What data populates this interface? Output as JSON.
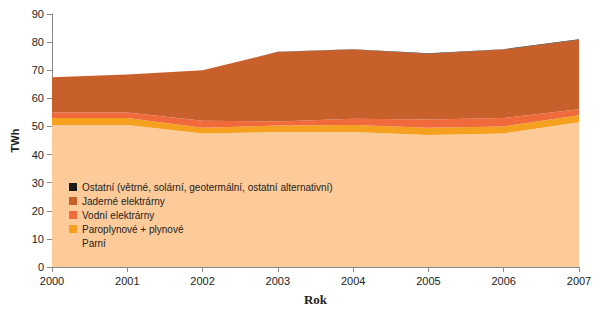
{
  "chart_data": {
    "type": "area",
    "stacked": true,
    "grid": false,
    "legend": "lower left",
    "x_label": "Rok",
    "y_label": "TWh",
    "categories": [
      "2000",
      "2001",
      "2002",
      "2003",
      "2004",
      "2005",
      "2006",
      "2007"
    ],
    "ylim": [
      0,
      90
    ],
    "yticks": [
      0,
      10,
      20,
      30,
      40,
      50,
      60,
      70,
      80,
      90
    ],
    "series": [
      {
        "name": "Parní",
        "color": "#fdcb9a",
        "values": [
          50.5,
          50.5,
          47.5,
          48,
          48,
          47,
          47.5,
          51.5
        ]
      },
      {
        "name": "Paroplynové + plynové",
        "color": "#f5a01e",
        "values": [
          2.5,
          2.5,
          2,
          2.3,
          2.5,
          2.5,
          2.5,
          2.5
        ]
      },
      {
        "name": "Vodní elektrárny",
        "color": "#f06a3c",
        "values": [
          2,
          2,
          2.5,
          1.5,
          2.2,
          3,
          3,
          2.1
        ]
      },
      {
        "name": "Jaderné elektrárny",
        "color": "#c8602c",
        "values": [
          12.5,
          13.5,
          18,
          24.7,
          24.7,
          23.4,
          24.4,
          24.7
        ]
      },
      {
        "name": "Ostatní (větrné, solární, geotermální, ostatní alternativní)",
        "color": "#1a1a1a",
        "values": [
          0.02,
          0.02,
          0.03,
          0.04,
          0.1,
          0.1,
          0.1,
          0.2
        ]
      }
    ]
  }
}
